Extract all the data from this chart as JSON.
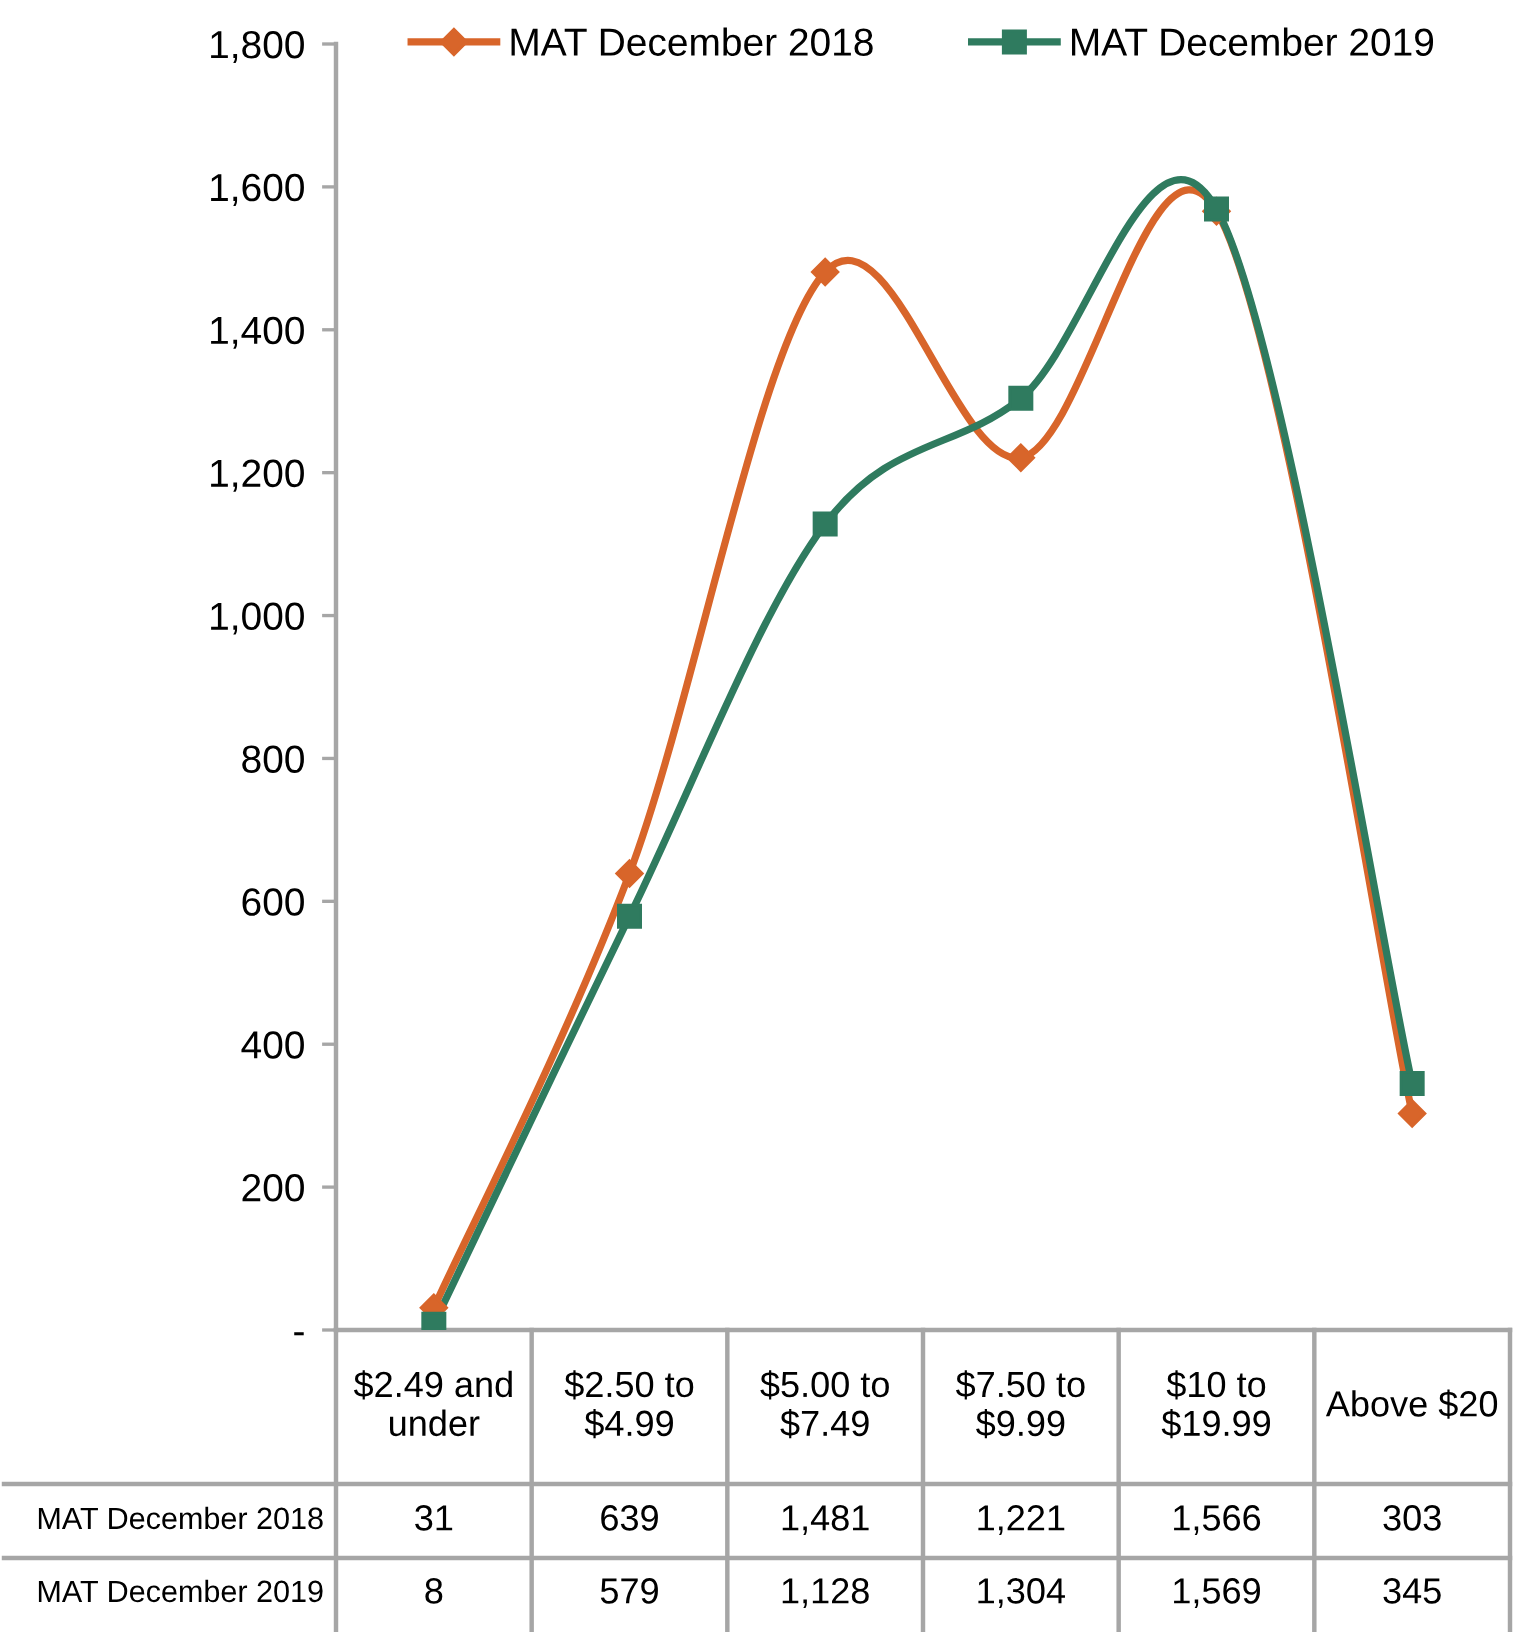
{
  "chart_data": {
    "type": "line",
    "categories": [
      "$2.49 and\nunder",
      "$2.50 to\n$4.99",
      "$5.00 to\n$7.49",
      "$7.50 to\n$9.99",
      "$10 to\n$19.99",
      "Above $20"
    ],
    "series": [
      {
        "name": "MAT December 2018",
        "color": "#d8652a",
        "marker": "diamond",
        "values": [
          31,
          639,
          1481,
          1221,
          1566,
          303
        ],
        "value_labels": [
          "31",
          "639",
          "1,481",
          "1,221",
          "1,566",
          "303"
        ]
      },
      {
        "name": "MAT December 2019",
        "color": "#2f7b5f",
        "marker": "square",
        "values": [
          8,
          579,
          1128,
          1304,
          1569,
          345
        ],
        "value_labels": [
          "8",
          "579",
          "1,128",
          "1,304",
          "1,569",
          "345"
        ]
      }
    ],
    "ylim": [
      0,
      1800
    ],
    "yticks": [
      {
        "value": 0,
        "label": "-"
      },
      200,
      400,
      600,
      800,
      {
        "value": 1000,
        "label": "1,000"
      },
      {
        "value": 1200,
        "label": "1,200"
      },
      {
        "value": 1400,
        "label": "1,400"
      },
      {
        "value": 1600,
        "label": "1,600"
      },
      {
        "value": 1800,
        "label": "1,800"
      }
    ],
    "legend": "top",
    "grid": false,
    "line_style": "solid"
  }
}
